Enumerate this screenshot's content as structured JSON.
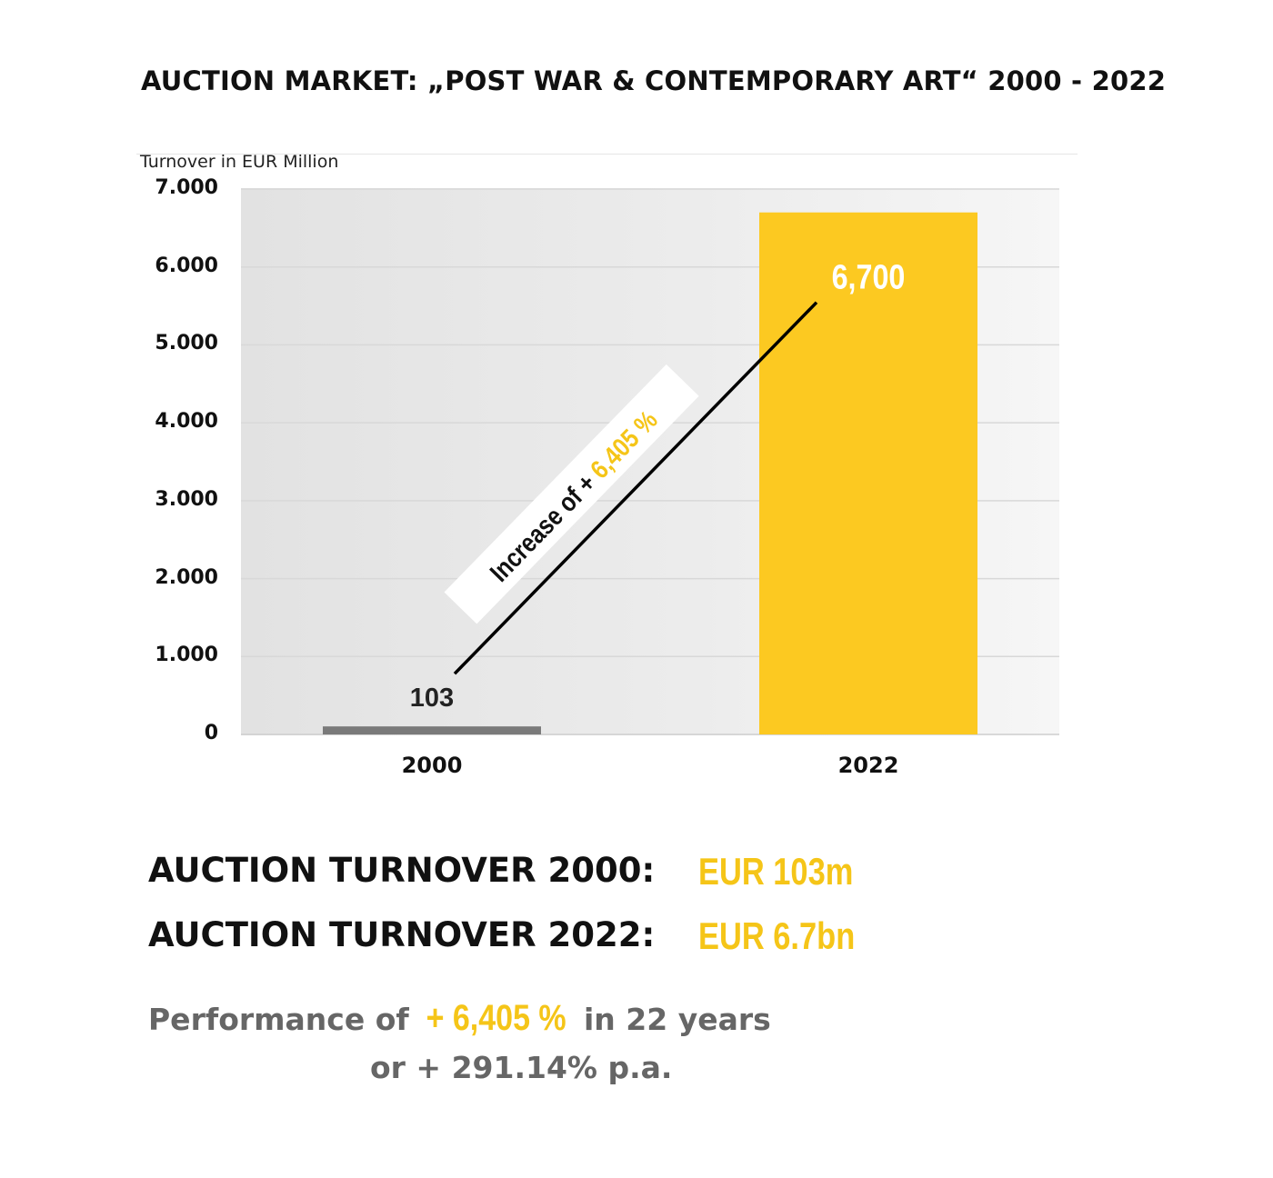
{
  "header": {
    "title": "AUCTION MARKET: „POST WAR & CONTEMPORARY ART“ 2000 - 2022"
  },
  "chart_data": {
    "type": "bar",
    "title": "AUCTION MARKET: „POST WAR & CONTEMPORARY ART“ 2000 - 2022",
    "xlabel": "",
    "ylabel": "Turnover in EUR Million",
    "categories": [
      "2000",
      "2022"
    ],
    "values": [
      103,
      6700
    ],
    "value_labels": [
      "103",
      "6,700"
    ],
    "bar_colors": [
      "#7a7a7a",
      "#fcc921"
    ],
    "ylim": [
      0,
      7000
    ],
    "yticks": [
      0,
      1000,
      2000,
      3000,
      4000,
      5000,
      6000,
      7000
    ],
    "ytick_labels": [
      "0",
      "1.000",
      "2.000",
      "3.000",
      "4.000",
      "5.000",
      "6.000",
      "7.000"
    ],
    "grid": true,
    "annotation": {
      "prefix": "Increase of + ",
      "highlight": "6,405 %",
      "from_category": "2000",
      "to_category": "2022"
    }
  },
  "summary": {
    "row1_label": "AUCTION TURNOVER 2000:",
    "row1_value": "EUR 103m",
    "row2_label": "AUCTION TURNOVER 2022:",
    "row2_value": "EUR 6.7bn",
    "perf_prefix": "Performance of ",
    "perf_highlight": "+ 6,405 %",
    "perf_suffix": " in 22 years",
    "perf_line2": "or + 291.14% p.a."
  },
  "colors": {
    "accent": "#fcc921",
    "accent_text": "#f5c518",
    "bar_2000": "#7a7a7a",
    "muted_text": "#666666"
  }
}
